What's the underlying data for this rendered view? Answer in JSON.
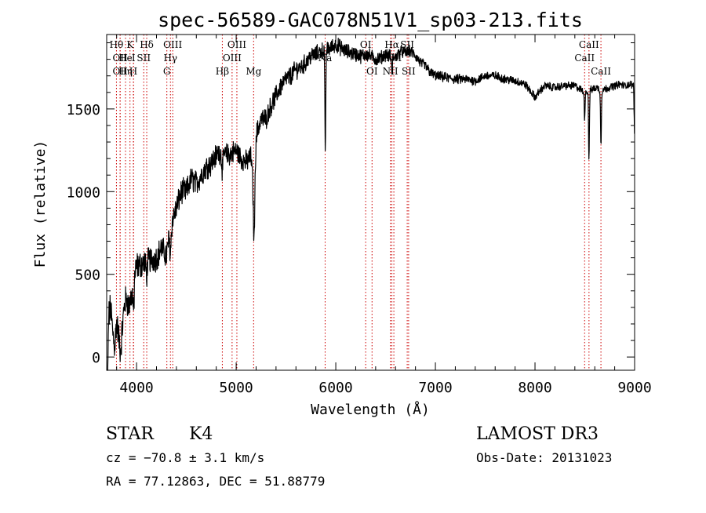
{
  "chart_data": {
    "type": "line",
    "title": "spec-56589-GAC078N51V1_sp03-213.fits",
    "xlabel": "Wavelength (Å)",
    "ylabel": "Flux (relative)",
    "xlim": [
      3700,
      9000
    ],
    "ylim": [
      -80,
      1950
    ],
    "x_ticks": [
      4000,
      5000,
      6000,
      7000,
      8000,
      9000
    ],
    "y_ticks": [
      0,
      500,
      1000,
      1500
    ],
    "spectrum_anchors": {
      "x": [
        3700,
        3720,
        3740,
        3760,
        3780,
        3800,
        3820,
        3840,
        3860,
        3880,
        3900,
        3920,
        3940,
        3960,
        3980,
        4000,
        4050,
        4100,
        4150,
        4200,
        4250,
        4300,
        4340,
        4400,
        4450,
        4500,
        4550,
        4600,
        4650,
        4700,
        4750,
        4800,
        4850,
        4900,
        4950,
        5000,
        5050,
        5100,
        5150,
        5180,
        5200,
        5250,
        5300,
        5350,
        5400,
        5450,
        5500,
        5550,
        5600,
        5650,
        5700,
        5750,
        5800,
        5850,
        5895,
        5920,
        5950,
        6000,
        6050,
        6100,
        6150,
        6200,
        6250,
        6300,
        6350,
        6400,
        6450,
        6500,
        6550,
        6600,
        6650,
        6700,
        6750,
        6800,
        6850,
        6900,
        6950,
        7000,
        7100,
        7200,
        7300,
        7400,
        7500,
        7600,
        7700,
        7800,
        7900,
        8000,
        8050,
        8100,
        8200,
        8300,
        8400,
        8450,
        8498,
        8542,
        8580,
        8620,
        8662,
        8700,
        8750,
        8800,
        8850,
        8900,
        8960,
        8990,
        9000
      ],
      "y": [
        -40,
        250,
        300,
        150,
        60,
        220,
        120,
        30,
        200,
        320,
        360,
        300,
        350,
        400,
        500,
        550,
        560,
        580,
        590,
        600,
        660,
        610,
        790,
        900,
        1000,
        1000,
        1080,
        1050,
        1100,
        1150,
        1170,
        1220,
        1250,
        1220,
        1230,
        1250,
        1200,
        1180,
        1210,
        960,
        1340,
        1440,
        1440,
        1520,
        1580,
        1640,
        1680,
        1700,
        1740,
        1750,
        1780,
        1820,
        1830,
        1850,
        1860,
        1860,
        1870,
        1890,
        1870,
        1850,
        1840,
        1830,
        1820,
        1830,
        1820,
        1800,
        1810,
        1830,
        1820,
        1810,
        1850,
        1840,
        1850,
        1820,
        1780,
        1760,
        1720,
        1700,
        1690,
        1680,
        1680,
        1670,
        1700,
        1700,
        1680,
        1670,
        1650,
        1570,
        1610,
        1640,
        1630,
        1640,
        1640,
        1620,
        1600,
        1610,
        1620,
        1630,
        1610,
        1620,
        1630,
        1640,
        1650,
        1640,
        1650,
        1640,
        1300
      ]
    },
    "absorption_dips": [
      {
        "x": 3700,
        "depth": 900,
        "width": 10
      },
      {
        "x": 3970,
        "depth": 180,
        "width": 8
      },
      {
        "x": 4100,
        "depth": 80,
        "width": 10
      },
      {
        "x": 4340,
        "depth": 150,
        "width": 10
      },
      {
        "x": 4861,
        "depth": 100,
        "width": 12
      },
      {
        "x": 5180,
        "depth": 260,
        "width": 10
      },
      {
        "x": 5895,
        "depth": 650,
        "width": 6
      },
      {
        "x": 6563,
        "depth": 80,
        "width": 8
      },
      {
        "x": 8498,
        "depth": 150,
        "width": 6
      },
      {
        "x": 8542,
        "depth": 420,
        "width": 6
      },
      {
        "x": 8662,
        "depth": 330,
        "width": 6
      }
    ],
    "noise_amplitude": {
      "x": [
        3700,
        4300,
        5000,
        6000,
        7000,
        8000,
        9000
      ],
      "y": [
        110,
        90,
        80,
        55,
        35,
        28,
        25
      ]
    },
    "line_markers": [
      {
        "x": 3798,
        "label": "Hθ",
        "row": 0
      },
      {
        "x": 3835,
        "label": "OII",
        "row": 1
      },
      {
        "x": 3835,
        "label": "OII",
        "row": 2
      },
      {
        "x": 3889,
        "label": "Hη",
        "row": 2
      },
      {
        "x": 3889,
        "label": "He",
        "row": 1
      },
      {
        "x": 3934,
        "label": "K",
        "row": 0
      },
      {
        "x": 3968,
        "label": "H",
        "row": 2
      },
      {
        "x": 3970,
        "label": "I",
        "row": 1
      },
      {
        "x": 4072,
        "label": "SII",
        "row": 1
      },
      {
        "x": 4102,
        "label": "Hδ",
        "row": 0
      },
      {
        "x": 4304,
        "label": "G",
        "row": 2
      },
      {
        "x": 4340,
        "label": "Hγ",
        "row": 1
      },
      {
        "x": 4363,
        "label": "OIII",
        "row": 0
      },
      {
        "x": 4861,
        "label": "Hβ",
        "row": 2
      },
      {
        "x": 4959,
        "label": "OIII",
        "row": 1
      },
      {
        "x": 5007,
        "label": "OIII",
        "row": 0
      },
      {
        "x": 5175,
        "label": "Mg",
        "row": 2
      },
      {
        "x": 5893,
        "label": "Na",
        "row": 1
      },
      {
        "x": 6300,
        "label": "OI",
        "row": 0
      },
      {
        "x": 6364,
        "label": "OI",
        "row": 2
      },
      {
        "x": 6548,
        "label": "NII",
        "row": 2
      },
      {
        "x": 6563,
        "label": "Hα",
        "row": 0
      },
      {
        "x": 6583,
        "label": "NII",
        "row": 1
      },
      {
        "x": 6717,
        "label": "SII",
        "row": 0
      },
      {
        "x": 6731,
        "label": "SII",
        "row": 2
      },
      {
        "x": 8498,
        "label": "CaII",
        "row": 1
      },
      {
        "x": 8542,
        "label": "CaII",
        "row": 0
      },
      {
        "x": 8662,
        "label": "CaII",
        "row": 2
      }
    ],
    "line_marker_color": "#cc0000"
  },
  "info": {
    "object_type": "STAR",
    "subclass": "K4",
    "survey": "LAMOST DR3",
    "redshift": "cz = −70.8 ± 3.1 km/s",
    "obs_date": "Obs-Date: 20131023",
    "coords": "RA =  77.12863, DEC =  51.88779"
  }
}
